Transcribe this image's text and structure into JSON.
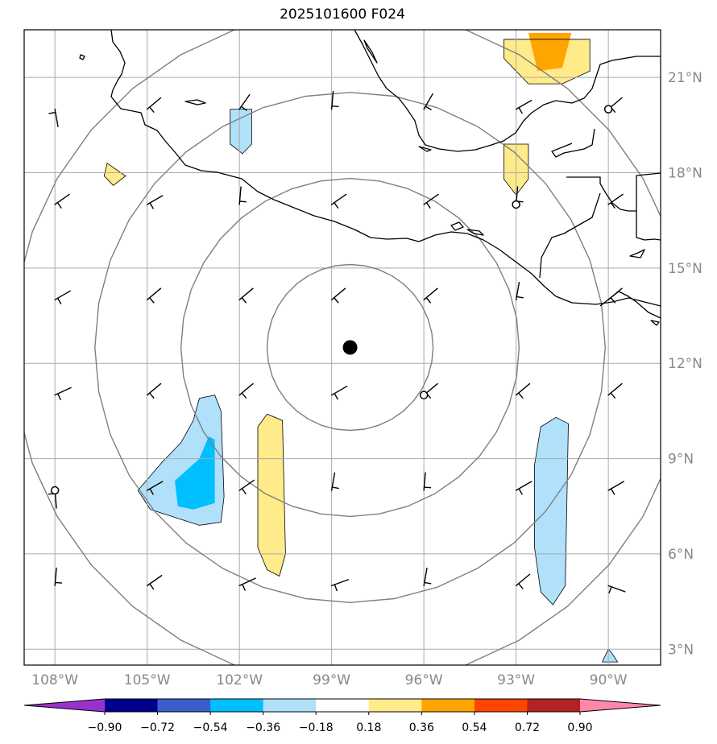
{
  "title": "2025101600 F024",
  "map": {
    "projection": "PlateCarree",
    "extent_lon": [
      -109,
      -88.3
    ],
    "extent_lat": [
      2.5,
      22.5
    ],
    "center": {
      "lon": -98.4,
      "lat": 12.5
    },
    "range_rings_deg": [
      2.7,
      5.5,
      8.3,
      11.0
    ],
    "land_mask_colors": {
      "coast": "#000000",
      "grid": "#a9a9a9",
      "ring": "#7f7f7f"
    }
  },
  "lon_ticks": [
    {
      "value": -108,
      "label": "108°W"
    },
    {
      "value": -105,
      "label": "105°W"
    },
    {
      "value": -102,
      "label": "102°W"
    },
    {
      "value": -99,
      "label": "99°W"
    },
    {
      "value": -96,
      "label": "96°W"
    },
    {
      "value": -93,
      "label": "93°W"
    },
    {
      "value": -90,
      "label": "90°W"
    }
  ],
  "lat_ticks": [
    {
      "value": 21,
      "label": "21°N"
    },
    {
      "value": 18,
      "label": "18°N"
    },
    {
      "value": 15,
      "label": "15°N"
    },
    {
      "value": 12,
      "label": "12°N"
    },
    {
      "value": 9,
      "label": "9°N"
    },
    {
      "value": 6,
      "label": "6°N"
    },
    {
      "value": 3,
      "label": "3°N"
    }
  ],
  "colorbar": {
    "levels": [
      -0.9,
      -0.72,
      -0.54,
      -0.36,
      -0.18,
      0.18,
      0.36,
      0.54,
      0.72,
      0.9
    ],
    "labels": [
      "−0.90",
      "−0.72",
      "−0.54",
      "−0.36",
      "−0.18",
      "0.18",
      "0.36",
      "0.54",
      "0.72",
      "0.90"
    ],
    "colors": [
      "#9932cc",
      "#00008b",
      "#3a5fcd",
      "#00bfff",
      "#b0e0fa",
      "#ffffff",
      "#ffeb8a",
      "#ffa500",
      "#ff4500",
      "#b22222",
      "#ff88aa"
    ]
  },
  "anomaly_patches": [
    {
      "level": 0.18,
      "color": "#ffeb8a",
      "pts": [
        [
          -93.4,
          22.2
        ],
        [
          -90.6,
          22.2
        ],
        [
          -90.6,
          21.2
        ],
        [
          -91.5,
          20.8
        ],
        [
          -92.6,
          20.8
        ],
        [
          -93.4,
          21.6
        ]
      ]
    },
    {
      "level": 0.36,
      "color": "#ffa500",
      "pts": [
        [
          -92.6,
          22.4
        ],
        [
          -91.2,
          22.4
        ],
        [
          -91.5,
          21.3
        ],
        [
          -92.3,
          21.2
        ]
      ]
    },
    {
      "level": 0.18,
      "color": "#ffeb8a",
      "pts": [
        [
          -93.4,
          18.9
        ],
        [
          -92.6,
          18.9
        ],
        [
          -92.6,
          17.8
        ],
        [
          -93.0,
          17.3
        ],
        [
          -93.4,
          17.8
        ]
      ]
    },
    {
      "level": 0.18,
      "color": "#ffeb8a",
      "pts": [
        [
          -106.3,
          18.3
        ],
        [
          -105.7,
          17.9
        ],
        [
          -106.1,
          17.6
        ],
        [
          -106.4,
          17.9
        ]
      ]
    },
    {
      "level": -0.18,
      "color": "#b0e0fa",
      "pts": [
        [
          -102.3,
          20.0
        ],
        [
          -101.6,
          20.0
        ],
        [
          -101.6,
          18.9
        ],
        [
          -101.9,
          18.6
        ],
        [
          -102.3,
          18.9
        ]
      ]
    },
    {
      "level": -0.18,
      "color": "#b0e0fa",
      "pts": [
        [
          -103.3,
          10.9
        ],
        [
          -102.8,
          11.0
        ],
        [
          -102.6,
          10.5
        ],
        [
          -102.5,
          7.8
        ],
        [
          -102.6,
          7.0
        ],
        [
          -103.3,
          6.9
        ],
        [
          -104.9,
          7.4
        ],
        [
          -105.3,
          8.0
        ],
        [
          -104.5,
          8.9
        ],
        [
          -103.9,
          9.5
        ],
        [
          -103.5,
          10.2
        ]
      ]
    },
    {
      "level": -0.36,
      "color": "#00bfff",
      "pts": [
        [
          -103.0,
          9.7
        ],
        [
          -102.8,
          9.6
        ],
        [
          -102.8,
          7.6
        ],
        [
          -103.5,
          7.4
        ],
        [
          -104.0,
          7.5
        ],
        [
          -104.1,
          8.3
        ],
        [
          -103.3,
          9.0
        ]
      ]
    },
    {
      "level": 0.18,
      "color": "#ffeb8a",
      "pts": [
        [
          -101.1,
          10.4
        ],
        [
          -100.6,
          10.2
        ],
        [
          -100.5,
          6.0
        ],
        [
          -100.7,
          5.3
        ],
        [
          -101.1,
          5.5
        ],
        [
          -101.4,
          6.2
        ],
        [
          -101.4,
          10.0
        ]
      ]
    },
    {
      "level": -0.18,
      "color": "#b0e0fa",
      "pts": [
        [
          -91.7,
          10.3
        ],
        [
          -91.3,
          10.1
        ],
        [
          -91.4,
          5.0
        ],
        [
          -91.8,
          4.4
        ],
        [
          -92.2,
          4.8
        ],
        [
          -92.4,
          6.2
        ],
        [
          -92.4,
          8.8
        ],
        [
          -92.2,
          10.0
        ]
      ]
    },
    {
      "level": -0.18,
      "color": "#b0e0fa",
      "pts": [
        [
          -90.2,
          2.6
        ],
        [
          -89.7,
          2.6
        ],
        [
          -89.9,
          2.9
        ],
        [
          -90.0,
          3.0
        ]
      ]
    }
  ],
  "storm_center": {
    "lon": -98.4,
    "lat": 12.5
  },
  "markers": [
    {
      "lon": -90.0,
      "lat": 20.0
    },
    {
      "lon": -93.0,
      "lat": 17.0
    },
    {
      "lon": -96.0,
      "lat": 11.0
    },
    {
      "lon": -108.0,
      "lat": 8.0
    }
  ]
}
